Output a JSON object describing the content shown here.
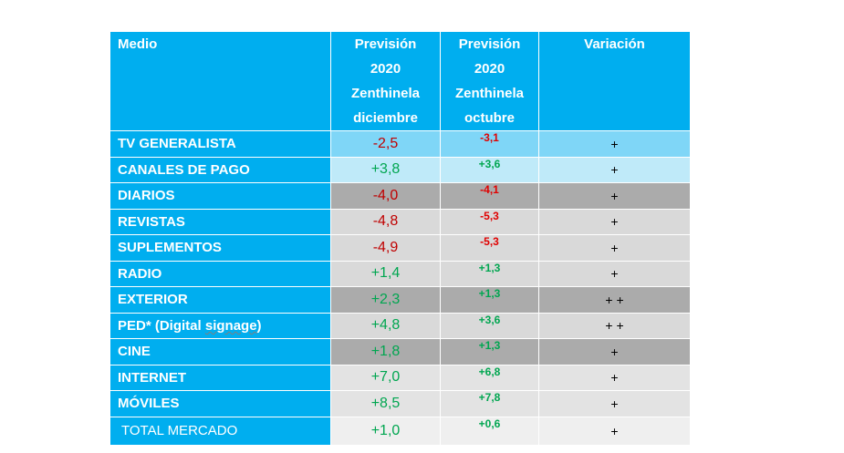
{
  "header": {
    "medio": "Medio",
    "dic_l1": "Previsión",
    "dic_l2": "2020",
    "dic_l3": "Zenthinela",
    "dic_l4": "diciembre",
    "oct_l1": "Previsión",
    "oct_l2": "2020",
    "oct_l3": "Zenthinela",
    "oct_l4": "octubre",
    "variacion": "Variación"
  },
  "rows": [
    {
      "label": "TV GENERALISTA",
      "dic": "-2,5",
      "oct": "-3,1",
      "var": "+"
    },
    {
      "label": "CANALES DE PAGO",
      "dic": "+3,8",
      "oct": "+3,6",
      "var": "+"
    },
    {
      "label": "DIARIOS",
      "dic": "-4,0",
      "oct": "-4,1",
      "var": "+"
    },
    {
      "label": "REVISTAS",
      "dic": "-4,8",
      "oct": "-5,3",
      "var": "+"
    },
    {
      "label": "SUPLEMENTOS",
      "dic": "-4,9",
      "oct": "-5,3",
      "var": "+"
    },
    {
      "label": "RADIO",
      "dic": "+1,4",
      "oct": "+1,3",
      "var": "+"
    },
    {
      "label": "EXTERIOR",
      "dic": "+2,3",
      "oct": "+1,3",
      "var": "+ +"
    },
    {
      "label_a": "PED*  (Digital ",
      "label_b": "signage",
      "label_c": ")",
      "dic": "+4,8",
      "oct": "+3,6",
      "var": "+ +"
    },
    {
      "label": "CINE",
      "dic": "+1,8",
      "oct": "+1,3",
      "var": "+"
    },
    {
      "label": "INTERNET",
      "dic": "+7,0",
      "oct": "+6,8",
      "var": "+"
    },
    {
      "label": "MÓVILES",
      "dic": "+8,5",
      "oct": "+7,8",
      "var": "+"
    },
    {
      "label": "TOTAL MERCADO",
      "dic": "+1,0",
      "oct": "+0,6",
      "var": "+"
    }
  ]
}
